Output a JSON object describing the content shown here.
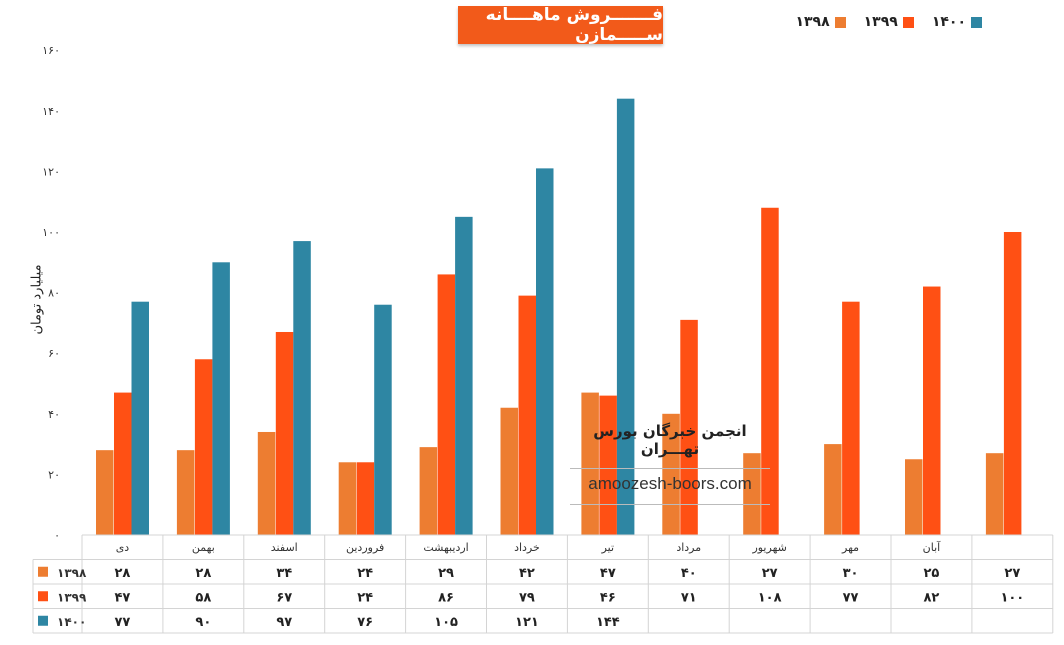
{
  "chart_data": {
    "type": "bar",
    "title": "فـــــــروش ماهــــانه ســـــمازن",
    "ylabel": "میلیارد تومان",
    "ylim": [
      0,
      160
    ],
    "yticks": [
      "۰",
      "۲۰",
      "۴۰",
      "۶۰",
      "۸۰",
      "۱۰۰",
      "۱۲۰",
      "۱۴۰",
      "۱۶۰"
    ],
    "ytick_values": [
      0,
      20,
      40,
      60,
      80,
      100,
      120,
      140,
      160
    ],
    "categories": [
      "دی",
      "بهمن",
      "اسفند",
      "فروردین",
      "اردیبهشت",
      "خرداد",
      "تیر",
      "مرداد",
      "شهریور",
      "مهر",
      "آبان",
      ""
    ],
    "series": [
      {
        "name": "۱۳۹۸",
        "color": "#ed7d31",
        "values": [
          28,
          28,
          34,
          24,
          29,
          42,
          47,
          40,
          27,
          30,
          25,
          27
        ],
        "labels": [
          "۲۸",
          "۲۸",
          "۳۴",
          "۲۴",
          "۲۹",
          "۴۲",
          "۴۷",
          "۴۰",
          "۲۷",
          "۳۰",
          "۲۵",
          "۲۷"
        ]
      },
      {
        "name": "۱۳۹۹",
        "color": "#ff5014",
        "values": [
          47,
          58,
          67,
          24,
          86,
          79,
          46,
          71,
          108,
          77,
          82,
          100
        ],
        "labels": [
          "۴۷",
          "۵۸",
          "۶۷",
          "۲۴",
          "۸۶",
          "۷۹",
          "۴۶",
          "۷۱",
          "۱۰۸",
          "۷۷",
          "۸۲",
          "۱۰۰"
        ]
      },
      {
        "name": "۱۴۰۰",
        "color": "#2e86a3",
        "values": [
          77,
          90,
          97,
          76,
          105,
          121,
          144,
          null,
          null,
          null,
          null,
          null
        ],
        "labels": [
          "۷۷",
          "۹۰",
          "۹۷",
          "۷۶",
          "۱۰۵",
          "۱۲۱",
          "۱۴۴",
          "",
          "",
          "",
          "",
          ""
        ]
      }
    ],
    "legend": "top-right",
    "grid": false,
    "data_table": true
  },
  "watermark": {
    "title": "انجمن خبرگان بورس تهـــران",
    "url": "amoozesh-boors.com"
  }
}
